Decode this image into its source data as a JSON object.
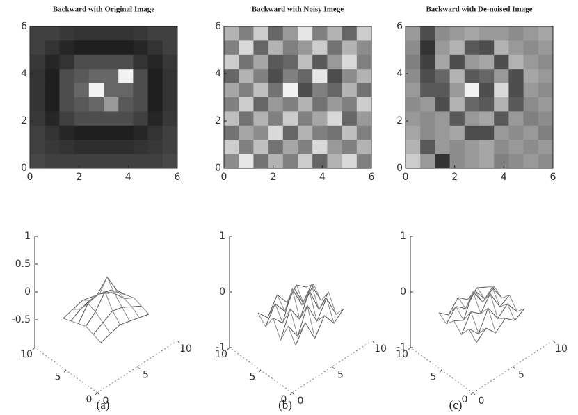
{
  "chart_data": [
    {
      "type": "heatmap",
      "title": "Backward with Original Image",
      "xlim": [
        0,
        6
      ],
      "ylim": [
        0,
        6
      ],
      "xticks": [
        0,
        2,
        4,
        6
      ],
      "yticks": [
        0,
        2,
        4,
        6
      ],
      "cmap": "gray",
      "z": [
        [
          0.25,
          0.25,
          0.22,
          0.2,
          0.2,
          0.2,
          0.2,
          0.22,
          0.25,
          0.25
        ],
        [
          0.25,
          0.2,
          0.15,
          0.12,
          0.12,
          0.12,
          0.12,
          0.15,
          0.2,
          0.25
        ],
        [
          0.22,
          0.15,
          0.2,
          0.3,
          0.3,
          0.3,
          0.3,
          0.2,
          0.15,
          0.22
        ],
        [
          0.2,
          0.12,
          0.3,
          0.35,
          0.4,
          0.4,
          0.95,
          0.3,
          0.12,
          0.2
        ],
        [
          0.2,
          0.12,
          0.3,
          0.4,
          0.95,
          0.4,
          0.4,
          0.3,
          0.12,
          0.2
        ],
        [
          0.2,
          0.12,
          0.3,
          0.35,
          0.4,
          0.6,
          0.35,
          0.3,
          0.12,
          0.2
        ],
        [
          0.22,
          0.15,
          0.25,
          0.3,
          0.3,
          0.3,
          0.3,
          0.25,
          0.15,
          0.22
        ],
        [
          0.25,
          0.2,
          0.15,
          0.12,
          0.12,
          0.12,
          0.12,
          0.15,
          0.2,
          0.25
        ],
        [
          0.25,
          0.22,
          0.2,
          0.18,
          0.18,
          0.18,
          0.18,
          0.2,
          0.22,
          0.25
        ],
        [
          0.28,
          0.25,
          0.25,
          0.25,
          0.25,
          0.25,
          0.25,
          0.25,
          0.25,
          0.28
        ]
      ]
    },
    {
      "type": "heatmap",
      "title": "Backward with Noisy Imege",
      "xlim": [
        0,
        6
      ],
      "ylim": [
        0,
        6
      ],
      "xticks": [
        0,
        2,
        4,
        6
      ],
      "yticks": [
        0,
        2,
        4,
        6
      ],
      "cmap": "gray",
      "z": [
        [
          0.7,
          0.5,
          0.8,
          0.4,
          0.6,
          0.9,
          0.5,
          0.7,
          0.4,
          0.8
        ],
        [
          0.5,
          0.85,
          0.4,
          0.7,
          0.5,
          0.6,
          0.8,
          0.45,
          0.7,
          0.55
        ],
        [
          0.8,
          0.45,
          0.65,
          0.35,
          0.4,
          0.75,
          0.35,
          0.6,
          0.85,
          0.5
        ],
        [
          0.4,
          0.7,
          0.5,
          0.3,
          0.5,
          0.4,
          0.9,
          0.3,
          0.55,
          0.7
        ],
        [
          0.65,
          0.5,
          0.75,
          0.45,
          0.95,
          0.3,
          0.5,
          0.4,
          0.7,
          0.45
        ],
        [
          0.5,
          0.8,
          0.4,
          0.6,
          0.5,
          0.7,
          0.45,
          0.6,
          0.5,
          0.8
        ],
        [
          0.75,
          0.45,
          0.7,
          0.5,
          0.8,
          0.5,
          0.65,
          0.85,
          0.4,
          0.6
        ],
        [
          0.45,
          0.65,
          0.55,
          0.85,
          0.4,
          0.7,
          0.5,
          0.45,
          0.75,
          0.5
        ],
        [
          0.8,
          0.5,
          0.75,
          0.45,
          0.65,
          0.5,
          0.85,
          0.6,
          0.5,
          0.7
        ],
        [
          0.55,
          0.9,
          0.45,
          0.7,
          0.5,
          0.8,
          0.4,
          0.7,
          0.85,
          0.5
        ]
      ]
    },
    {
      "type": "heatmap",
      "title": "Backward with De-noised Image",
      "xlim": [
        0,
        6
      ],
      "ylim": [
        0,
        6
      ],
      "xticks": [
        0,
        2,
        4,
        6
      ],
      "yticks": [
        0,
        2,
        4,
        6
      ],
      "cmap": "gray",
      "z": [
        [
          0.6,
          0.3,
          0.55,
          0.6,
          0.65,
          0.6,
          0.6,
          0.55,
          0.6,
          0.65
        ],
        [
          0.55,
          0.2,
          0.6,
          0.7,
          0.35,
          0.3,
          0.7,
          0.6,
          0.55,
          0.6
        ],
        [
          0.5,
          0.25,
          0.65,
          0.3,
          0.6,
          0.65,
          0.3,
          0.7,
          0.6,
          0.55
        ],
        [
          0.55,
          0.3,
          0.4,
          0.7,
          0.35,
          0.4,
          0.6,
          0.3,
          0.65,
          0.6
        ],
        [
          0.6,
          0.35,
          0.35,
          0.6,
          0.95,
          0.3,
          0.85,
          0.3,
          0.6,
          0.55
        ],
        [
          0.55,
          0.6,
          0.3,
          0.7,
          0.4,
          0.35,
          0.7,
          0.35,
          0.55,
          0.6
        ],
        [
          0.6,
          0.55,
          0.6,
          0.35,
          0.6,
          0.65,
          0.35,
          0.6,
          0.5,
          0.55
        ],
        [
          0.65,
          0.55,
          0.6,
          0.65,
          0.3,
          0.3,
          0.6,
          0.55,
          0.6,
          0.5
        ],
        [
          0.7,
          0.35,
          0.6,
          0.55,
          0.6,
          0.65,
          0.55,
          0.6,
          0.55,
          0.6
        ],
        [
          0.8,
          0.6,
          0.2,
          0.55,
          0.6,
          0.65,
          0.5,
          0.55,
          0.6,
          0.55
        ]
      ]
    },
    {
      "type": "surface",
      "xlim": [
        0,
        10
      ],
      "ylim": [
        0,
        10
      ],
      "zlim": [
        -1,
        1
      ],
      "xticks": [
        0,
        5,
        10
      ],
      "yticks": [
        0,
        5,
        10
      ],
      "zticks": [
        -0.5,
        0,
        0.5,
        1
      ],
      "x": [
        2,
        3.2,
        4.4,
        5.6,
        6.8,
        8
      ],
      "y": [
        2,
        3.2,
        4.4,
        5.6,
        6.8,
        8
      ],
      "z": [
        [
          -0.45,
          -0.4,
          -0.35,
          -0.4,
          -0.45,
          -0.5
        ],
        [
          -0.4,
          -0.3,
          -0.2,
          -0.25,
          -0.35,
          -0.45
        ],
        [
          -0.35,
          -0.2,
          0.05,
          -0.1,
          -0.3,
          -0.4
        ],
        [
          -0.4,
          -0.15,
          -0.1,
          0.1,
          -0.25,
          -0.45
        ],
        [
          -0.45,
          -0.35,
          -0.3,
          -0.3,
          -0.4,
          -0.5
        ],
        [
          -0.5,
          -0.45,
          -0.4,
          -0.45,
          -0.5,
          -0.55
        ]
      ]
    },
    {
      "type": "surface",
      "xlim": [
        0,
        10
      ],
      "ylim": [
        0,
        10
      ],
      "zlim": [
        -1,
        1
      ],
      "xticks": [
        0,
        5,
        10
      ],
      "yticks": [
        0,
        5,
        10
      ],
      "zticks": [
        -1,
        0,
        1
      ],
      "x": [
        2,
        3.2,
        4.4,
        5.6,
        6.8,
        8
      ],
      "y": [
        2,
        3.2,
        4.4,
        5.6,
        6.8,
        8
      ],
      "z": [
        [
          -0.5,
          -0.2,
          -0.6,
          -0.3,
          -0.55,
          -0.4
        ],
        [
          -0.25,
          -0.55,
          -0.1,
          -0.5,
          -0.2,
          -0.6
        ],
        [
          -0.6,
          -0.15,
          -0.45,
          -0.05,
          -0.5,
          -0.3
        ],
        [
          -0.3,
          -0.5,
          0.0,
          -0.4,
          -0.15,
          -0.55
        ],
        [
          -0.55,
          -0.25,
          -0.5,
          -0.2,
          -0.6,
          -0.35
        ],
        [
          -0.4,
          -0.6,
          -0.3,
          -0.55,
          -0.35,
          -0.5
        ]
      ]
    },
    {
      "type": "surface",
      "xlim": [
        0,
        10
      ],
      "ylim": [
        0,
        10
      ],
      "zlim": [
        -1,
        1
      ],
      "xticks": [
        0,
        5,
        10
      ],
      "yticks": [
        0,
        5,
        10
      ],
      "zticks": [
        -1,
        0,
        1
      ],
      "x": [
        2,
        3.2,
        4.4,
        5.6,
        6.8,
        8
      ],
      "y": [
        2,
        3.2,
        4.4,
        5.6,
        6.8,
        8
      ],
      "z": [
        [
          -0.45,
          -0.3,
          -0.5,
          -0.35,
          -0.5,
          -0.4
        ],
        [
          -0.3,
          -0.5,
          -0.15,
          -0.45,
          -0.3,
          -0.55
        ],
        [
          -0.5,
          -0.2,
          -0.35,
          -0.1,
          -0.45,
          -0.35
        ],
        [
          -0.35,
          -0.45,
          -0.05,
          -0.35,
          -0.2,
          -0.5
        ],
        [
          -0.5,
          -0.3,
          -0.45,
          -0.25,
          -0.5,
          -0.4
        ],
        [
          -0.4,
          -0.55,
          -0.35,
          -0.5,
          -0.4,
          -0.5
        ]
      ]
    }
  ],
  "captions": [
    "(a)",
    "(b)",
    "(c)"
  ]
}
